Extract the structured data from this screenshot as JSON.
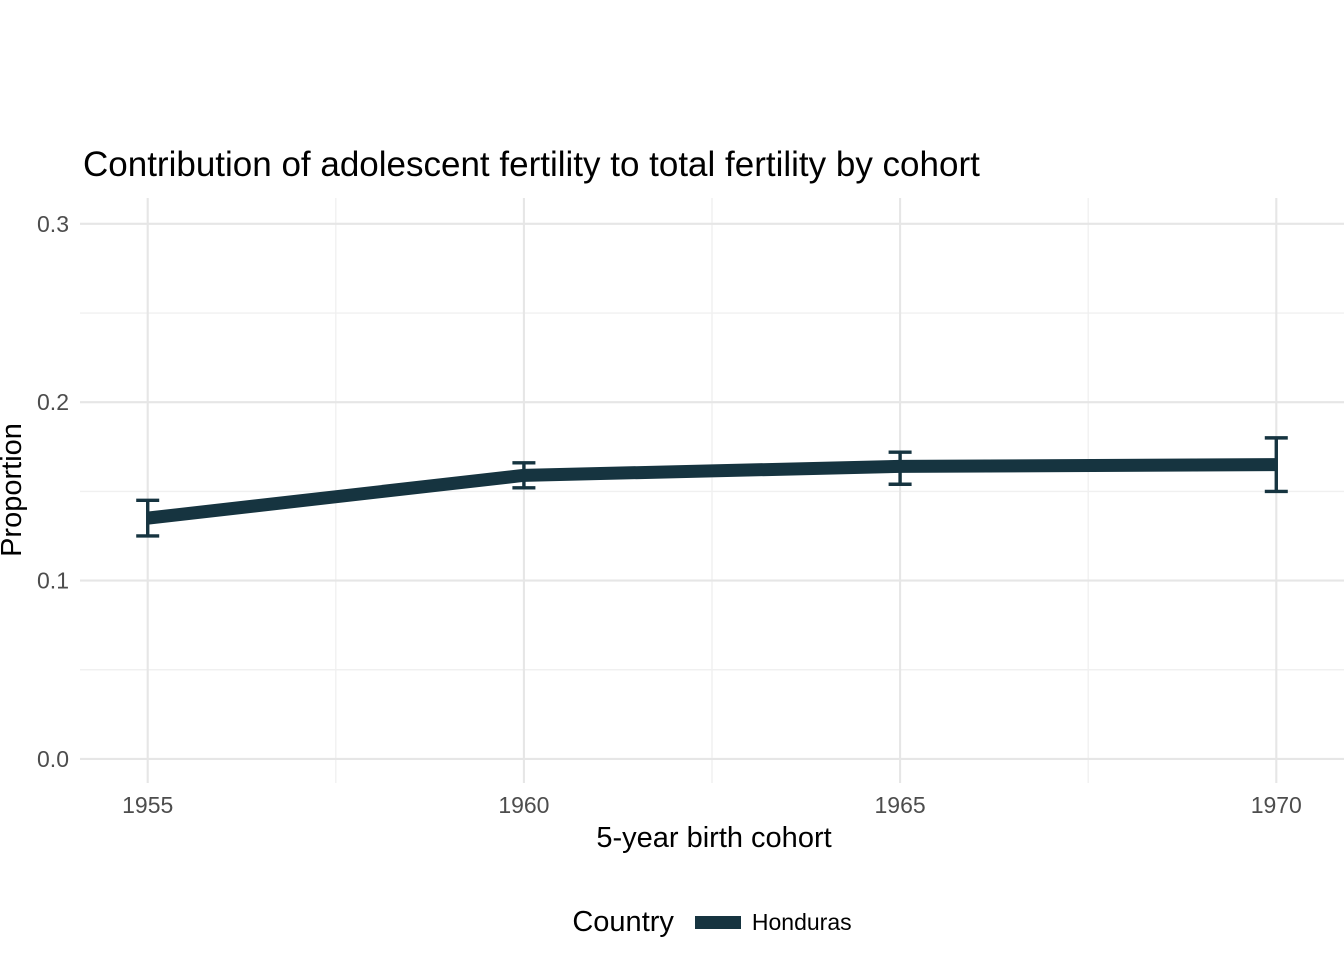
{
  "title": "Contribution of adolescent fertility to total fertility by cohort",
  "axes": {
    "x_title": "5-year birth cohort",
    "y_title": "Proportion",
    "x_tick_labels": [
      "1955",
      "1960",
      "1965",
      "1970"
    ],
    "y_tick_labels": [
      "0.0",
      "0.1",
      "0.2",
      "0.3"
    ]
  },
  "legend": {
    "title": "Country",
    "entries": [
      {
        "label": "Honduras",
        "color": "#163440"
      }
    ]
  },
  "colors": {
    "series": "#163440",
    "grid_major": "#E6E6E6",
    "grid_minor": "#F0F0F0",
    "tick_text": "#4D4D4D",
    "title_text": "#000000",
    "background": "#FFFFFF"
  },
  "chart_data": {
    "type": "line",
    "title": "Contribution of adolescent fertility to total fertility by cohort",
    "xlabel": "5-year birth cohort",
    "ylabel": "Proportion",
    "x": [
      1955,
      1960,
      1965,
      1970
    ],
    "series": [
      {
        "name": "Honduras",
        "values": [
          0.135,
          0.159,
          0.164,
          0.165
        ],
        "lower": [
          0.125,
          0.152,
          0.154,
          0.15
        ],
        "upper": [
          0.145,
          0.166,
          0.172,
          0.18
        ],
        "color": "#163440"
      }
    ],
    "error_bars": true,
    "xticks": [
      1955,
      1960,
      1965,
      1970
    ],
    "yticks": [
      0.0,
      0.1,
      0.2,
      0.3
    ],
    "xlim": [
      1954.1,
      1970.9
    ],
    "ylim": [
      -0.0135,
      0.3145
    ],
    "grid": "major+minor",
    "legend_position": "bottom"
  }
}
